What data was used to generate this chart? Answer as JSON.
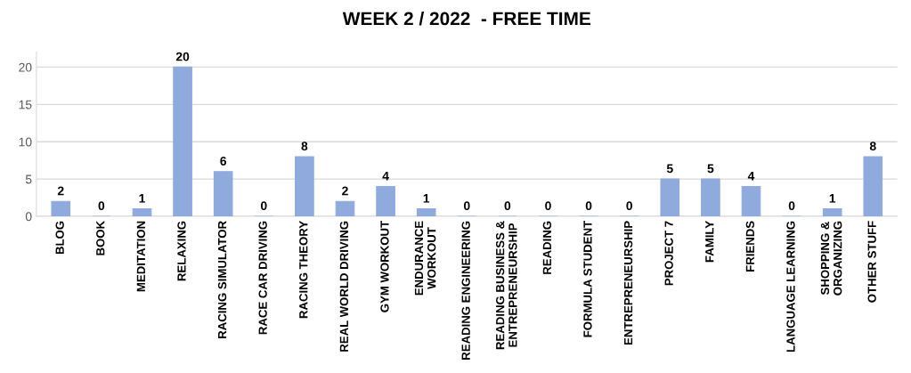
{
  "chart_data": {
    "type": "bar",
    "title": "WEEK 2 / 2022  - FREE TIME",
    "categories": [
      "BLOG",
      "BOOK",
      "MEDITATION",
      "RELAXING",
      "RACING SIMULATOR",
      "RACE CAR DRIVING",
      "RACING THEORY",
      "REAL WORLD DRIVING",
      "GYM WORKOUT",
      "ENDURANCE\nWORKOUT",
      "READING ENGINEERING",
      "READING BUSINESS &\nENTREPRENEURSHIP",
      "READING",
      "FORMULA STUDENT",
      "ENTREPRENEURSHIP",
      "PROJECT 7",
      "FAMILY",
      "FRIENDS",
      "LANGUAGE LEARNING",
      "SHOPPING &\nORGANIZING",
      "OTHER STUFF"
    ],
    "values": [
      2,
      0,
      1,
      20,
      6,
      0,
      8,
      2,
      4,
      1,
      0,
      0,
      0,
      0,
      0,
      5,
      5,
      4,
      0,
      1,
      8
    ],
    "color": "#8faadc",
    "ylim": [
      0,
      22
    ],
    "yticks": [
      0,
      5,
      10,
      15,
      20
    ],
    "grid": "y",
    "data_labels": true
  }
}
